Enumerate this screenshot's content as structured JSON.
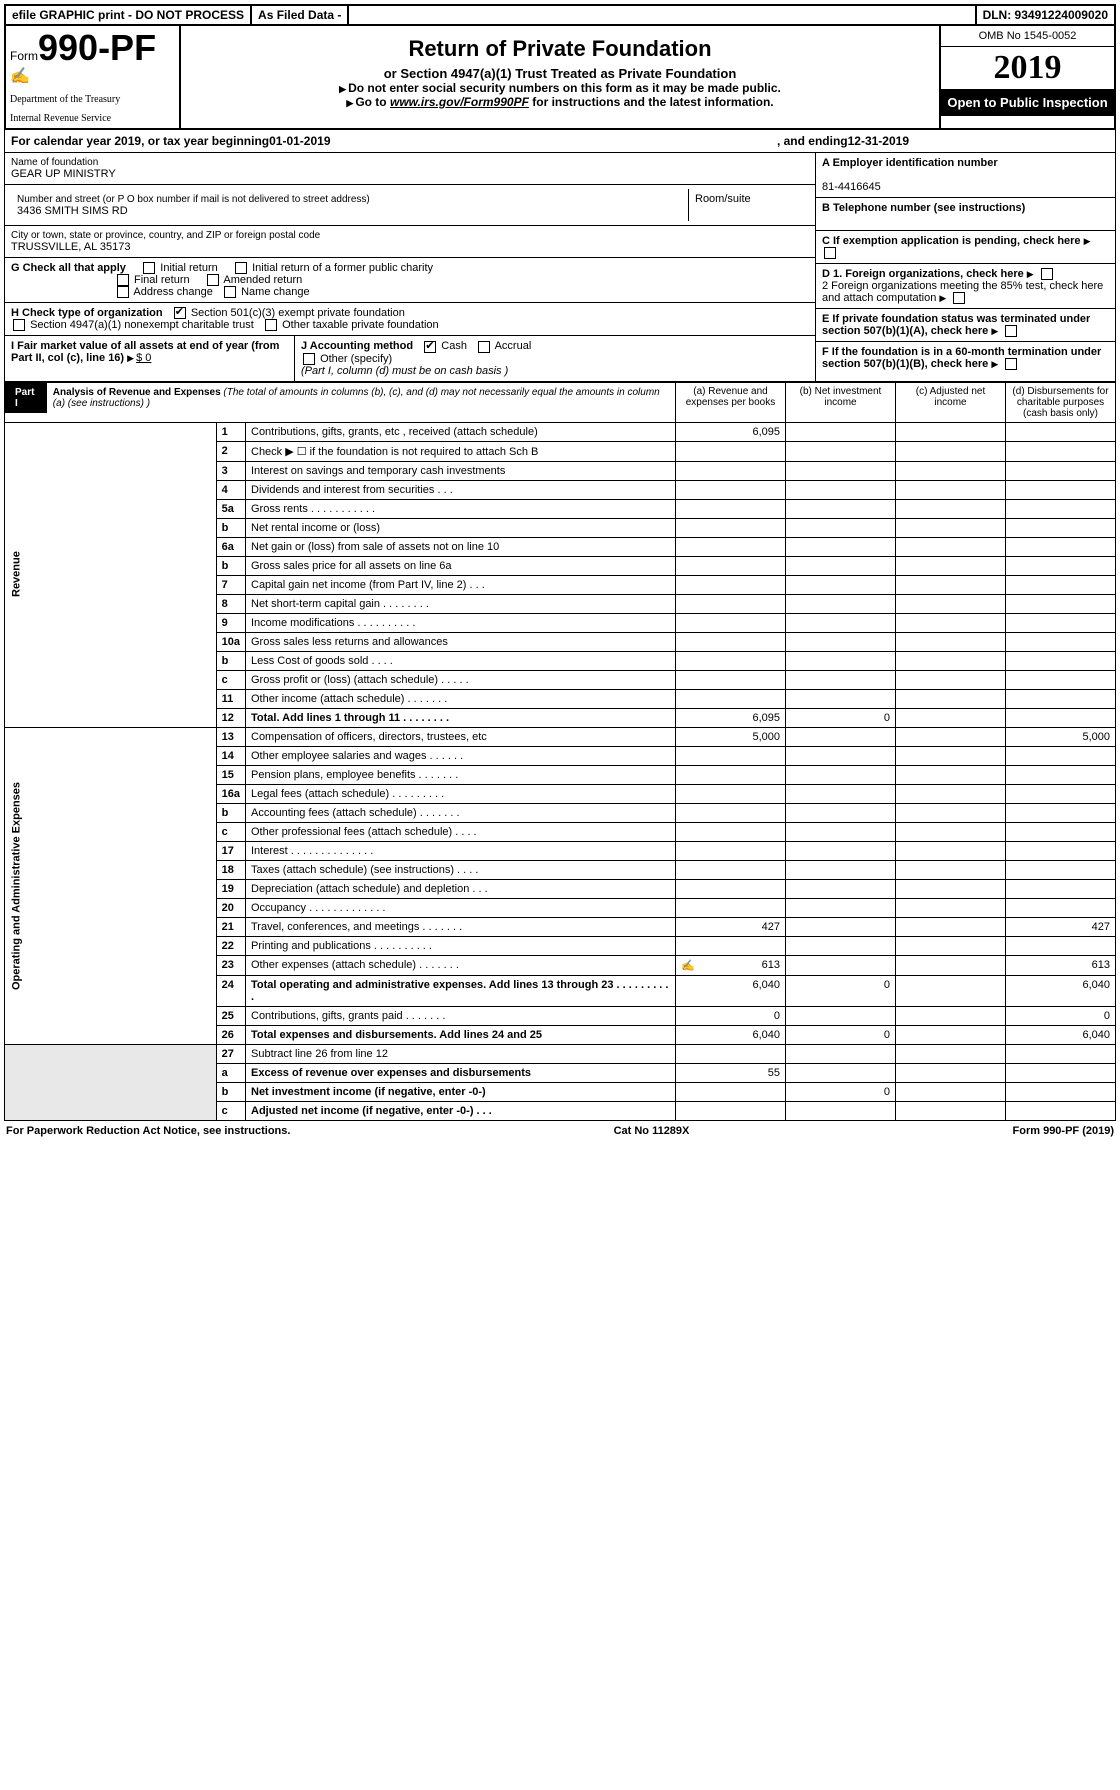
{
  "topbar": {
    "efile": "efile GRAPHIC print - DO NOT PROCESS",
    "asfiled": "As Filed Data -",
    "dln": "DLN: 93491224009020"
  },
  "header": {
    "form_prefix": "Form",
    "form_number": "990-PF",
    "dept1": "Department of the Treasury",
    "dept2": "Internal Revenue Service",
    "title": "Return of Private Foundation",
    "subtitle": "or Section 4947(a)(1) Trust Treated as Private Foundation",
    "note1": "Do not enter social security numbers on this form as it may be made public.",
    "note2_pre": "Go to ",
    "note2_link": "www.irs.gov/Form990PF",
    "note2_post": " for instructions and the latest information.",
    "omb": "OMB No 1545-0052",
    "year": "2019",
    "inspection": "Open to Public Inspection"
  },
  "calendar": {
    "pre": "For calendar year 2019, or tax year beginning ",
    "begin": "01-01-2019",
    "mid": ", and ending ",
    "end": "12-31-2019"
  },
  "entity": {
    "name_lbl": "Name of foundation",
    "name": "GEAR UP MINISTRY",
    "addr_lbl": "Number and street (or P O  box number if mail is not delivered to street address)",
    "addr": "3436 SMITH SIMS RD",
    "room_lbl": "Room/suite",
    "city_lbl": "City or town, state or province, country, and ZIP or foreign postal code",
    "city": "TRUSSVILLE, AL  35173",
    "a_lbl": "A Employer identification number",
    "a_val": "81-4416645",
    "b_lbl": "B Telephone number (see instructions)",
    "c_lbl": "C If exemption application is pending, check here",
    "d1": "D 1. Foreign organizations, check here",
    "d2": "2 Foreign organizations meeting the 85% test, check here and attach computation",
    "e": "E  If private foundation status was terminated under section 507(b)(1)(A), check here",
    "f": "F  If the foundation is in a 60-month termination under section 507(b)(1)(B), check here"
  },
  "checks": {
    "g_lbl": "G Check all that apply",
    "g": [
      "Initial return",
      "Initial return of a former public charity",
      "Final return",
      "Amended return",
      "Address change",
      "Name change"
    ],
    "h_lbl": "H Check type of organization",
    "h1": "Section 501(c)(3) exempt private foundation",
    "h2": "Section 4947(a)(1) nonexempt charitable trust",
    "h3": "Other taxable private foundation",
    "i_lbl": "I Fair market value of all assets at end of year (from Part II, col  (c), line 16) ",
    "i_val": "$  0",
    "j_lbl": "J Accounting method",
    "j_cash": "Cash",
    "j_accrual": "Accrual",
    "j_other": "Other (specify)",
    "j_note": "(Part I, column (d) must be on cash basis )"
  },
  "part1": {
    "label": "Part I",
    "title": "Analysis of Revenue and Expenses",
    "title_note": " (The total of amounts in columns (b), (c), and (d) may not necessarily equal the amounts in column (a) (see instructions) )",
    "col_a": "(a)  Revenue and expenses per books",
    "col_b": "(b)  Net investment income",
    "col_c": "(c)  Adjusted net income",
    "col_d": "(d)  Disbursements for charitable purposes (cash basis only)"
  },
  "side": {
    "rev": "Revenue",
    "exp": "Operating and Administrative Expenses"
  },
  "rows": [
    {
      "n": "1",
      "d": "Contributions, gifts, grants, etc , received (attach schedule)",
      "a": "6,095"
    },
    {
      "n": "2",
      "d": "Check ▶ ☐ if the foundation is not required to attach Sch  B"
    },
    {
      "n": "3",
      "d": "Interest on savings and temporary cash investments"
    },
    {
      "n": "4",
      "d": "Dividends and interest from securities   .   .   ."
    },
    {
      "n": "5a",
      "d": "Gross rents   .   .   .   .   .   .   .   .   .   .   ."
    },
    {
      "n": "b",
      "d": "Net rental income or (loss)  "
    },
    {
      "n": "6a",
      "d": "Net gain or (loss) from sale of assets not on line 10"
    },
    {
      "n": "b",
      "d": "Gross sales price for all assets on line 6a"
    },
    {
      "n": "7",
      "d": "Capital gain net income (from Part IV, line 2)   .   .   ."
    },
    {
      "n": "8",
      "d": "Net short-term capital gain  .   .   .   .   .   .   .   ."
    },
    {
      "n": "9",
      "d": "Income modifications .   .   .   .   .   .   .   .   .   ."
    },
    {
      "n": "10a",
      "d": "Gross sales less returns and allowances"
    },
    {
      "n": "b",
      "d": "Less  Cost of goods sold   .   .   .   ."
    },
    {
      "n": "c",
      "d": "Gross profit or (loss) (attach schedule)   .   .   .   .   ."
    },
    {
      "n": "11",
      "d": "Other income (attach schedule)   .   .   .   .   .   .   ."
    },
    {
      "n": "12",
      "d": "Total. Add lines 1 through 11   .   .   .   .   .   .   .   .",
      "a": "6,095",
      "b": "0",
      "bold": true
    }
  ],
  "exp_rows": [
    {
      "n": "13",
      "d": "Compensation of officers, directors, trustees, etc",
      "a": "5,000",
      "dd": "5,000"
    },
    {
      "n": "14",
      "d": "Other employee salaries and wages   .   .   .   .   .   ."
    },
    {
      "n": "15",
      "d": "Pension plans, employee benefits  .   .   .   .   .   .   ."
    },
    {
      "n": "16a",
      "d": "Legal fees (attach schedule) .   .   .   .   .   .   .   .   ."
    },
    {
      "n": "b",
      "d": "Accounting fees (attach schedule)  .   .   .   .   .   .   ."
    },
    {
      "n": "c",
      "d": "Other professional fees (attach schedule)   .   .   .   ."
    },
    {
      "n": "17",
      "d": "Interest  .   .   .   .   .   .   .   .   .   .   .   .   .   ."
    },
    {
      "n": "18",
      "d": "Taxes (attach schedule) (see instructions)    .   .   .   ."
    },
    {
      "n": "19",
      "d": "Depreciation (attach schedule) and depletion   .   .   ."
    },
    {
      "n": "20",
      "d": "Occupancy   .   .   .   .   .   .   .   .   .   .   .   .   ."
    },
    {
      "n": "21",
      "d": "Travel, conferences, and meetings .   .   .   .   .   .   .",
      "a": "427",
      "dd": "427"
    },
    {
      "n": "22",
      "d": "Printing and publications .   .   .   .   .   .   .   .   .   ."
    },
    {
      "n": "23",
      "d": "Other expenses (attach schedule) .   .   .   .   .   .   .",
      "a": "613",
      "dd": "613",
      "icon": true
    },
    {
      "n": "24",
      "d": "Total operating and administrative expenses. Add lines 13 through 23   .   .   .   .   .   .   .   .   .   .",
      "a": "6,040",
      "b": "0",
      "dd": "6,040",
      "bold": true
    },
    {
      "n": "25",
      "d": "Contributions, gifts, grants paid    .   .   .   .   .   .   .",
      "a": "0",
      "dd": "0"
    },
    {
      "n": "26",
      "d": "Total expenses and disbursements. Add lines 24 and 25",
      "a": "6,040",
      "b": "0",
      "dd": "6,040",
      "bold": true
    }
  ],
  "net_rows": [
    {
      "n": "27",
      "d": "Subtract line 26 from line 12"
    },
    {
      "n": "a",
      "d": "Excess of revenue over expenses and disbursements",
      "a": "55",
      "bold": true
    },
    {
      "n": "b",
      "d": "Net investment income (if negative, enter -0-)",
      "b": "0",
      "bold": true
    },
    {
      "n": "c",
      "d": "Adjusted net income (if negative, enter -0-)   .   .   .",
      "bold": true
    }
  ],
  "footer": {
    "left": "For Paperwork Reduction Act Notice, see instructions.",
    "mid": "Cat  No  11289X",
    "right": "Form 990-PF (2019)"
  }
}
